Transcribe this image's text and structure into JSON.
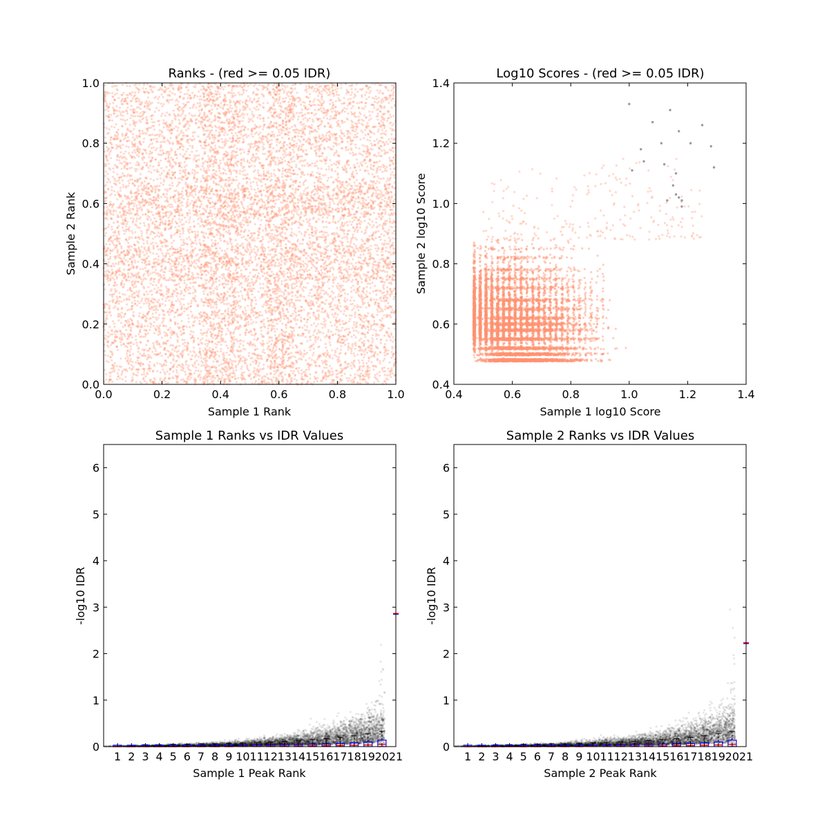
{
  "colors": {
    "pass_point": "#ff9270",
    "fail_point": "#808080",
    "idr_point": "#000000",
    "box": "#0000ff",
    "median": "#ff0000",
    "whisker": "#000000"
  },
  "chart_data": [
    {
      "type": "scatter",
      "title": "Ranks - (red >= 0.05 IDR)",
      "xlabel": "Sample 1 Rank",
      "ylabel": "Sample 2 Rank",
      "xlim": [
        0.0,
        1.0
      ],
      "ylim": [
        0.0,
        1.0
      ],
      "xticks": [
        "0.0",
        "0.2",
        "0.4",
        "0.6",
        "0.8",
        "1.0"
      ],
      "yticks": [
        "0.0",
        "0.2",
        "0.4",
        "0.6",
        "0.8",
        "1.0"
      ],
      "series": [
        {
          "color": "#ff9270",
          "description": "dense uniform cloud of ranks over [0,1]x[0,1]",
          "n_points_approx": 20000
        }
      ]
    },
    {
      "type": "scatter",
      "title": "Log10 Scores - (red >= 0.05 IDR)",
      "xlabel": "Sample 1 log10 Score",
      "ylabel": "Sample 2 log10 Score",
      "xlim": [
        0.4,
        1.4
      ],
      "ylim": [
        0.4,
        1.4
      ],
      "xticks": [
        "0.4",
        "0.6",
        "0.8",
        "1.0",
        "1.2",
        "1.4"
      ],
      "yticks": [
        "0.4",
        "0.6",
        "0.8",
        "1.0",
        "1.2",
        "1.4"
      ],
      "series": [
        {
          "color": "#ff9270",
          "description": "scores concentrated in [0.47,1.0]x[0.47,0.9], dense core near (0.6,0.6)"
        },
        {
          "color": "#808080",
          "points": [
            [
              1.0,
              1.33
            ],
            [
              1.14,
              1.31
            ],
            [
              1.25,
              1.26
            ],
            [
              1.08,
              1.27
            ],
            [
              1.17,
              1.24
            ],
            [
              1.11,
              1.2
            ],
            [
              1.21,
              1.2
            ],
            [
              1.28,
              1.19
            ],
            [
              1.04,
              1.18
            ],
            [
              1.05,
              1.14
            ],
            [
              1.12,
              1.13
            ],
            [
              1.29,
              1.12
            ],
            [
              1.01,
              1.11
            ],
            [
              1.16,
              1.1
            ],
            [
              1.15,
              1.06
            ],
            [
              1.16,
              1.03
            ],
            [
              1.17,
              1.02
            ],
            [
              1.18,
              1.01
            ],
            [
              1.18,
              0.99
            ],
            [
              1.13,
              1.01
            ]
          ]
        }
      ]
    },
    {
      "type": "boxplot",
      "title": "Sample 1 Ranks vs IDR Values",
      "xlabel": "Sample 1 Peak Rank",
      "ylabel": "-log10 IDR",
      "xlim": [
        0,
        21
      ],
      "ylim": [
        0,
        6.5
      ],
      "categories": [
        "1",
        "2",
        "3",
        "4",
        "5",
        "6",
        "7",
        "8",
        "9",
        "10",
        "11",
        "12",
        "13",
        "14",
        "15",
        "16",
        "17",
        "18",
        "19",
        "20",
        "21"
      ],
      "yticks": [
        "0",
        "1",
        "2",
        "3",
        "4",
        "5",
        "6"
      ],
      "box_medians": [
        0.0,
        0.0,
        0.0,
        0.0,
        0.0,
        0.0,
        0.0,
        0.0,
        0.0,
        0.005,
        0.005,
        0.008,
        0.01,
        0.012,
        0.015,
        0.018,
        0.022,
        0.028,
        0.035,
        0.05,
        2.86
      ],
      "box_q3": [
        0.005,
        0.005,
        0.008,
        0.01,
        0.012,
        0.015,
        0.018,
        0.02,
        0.025,
        0.03,
        0.035,
        0.04,
        0.045,
        0.05,
        0.055,
        0.06,
        0.07,
        0.08,
        0.1,
        0.14,
        2.87
      ],
      "whisker_max": [
        0.03,
        0.03,
        0.04,
        0.04,
        0.05,
        0.05,
        0.06,
        0.06,
        0.07,
        0.08,
        0.09,
        0.1,
        0.11,
        0.13,
        0.15,
        0.17,
        0.2,
        0.23,
        0.28,
        0.33,
        2.86
      ],
      "point_max": [
        0.04,
        0.04,
        0.05,
        0.05,
        0.06,
        0.07,
        0.08,
        0.08,
        0.1,
        0.11,
        0.13,
        0.14,
        0.16,
        0.19,
        0.22,
        0.27,
        0.34,
        0.5,
        0.9,
        3.0,
        2.86
      ]
    },
    {
      "type": "boxplot",
      "title": "Sample 2 Ranks vs IDR Values",
      "xlabel": "Sample 2 Peak Rank",
      "ylabel": "-log10 IDR",
      "xlim": [
        0,
        21
      ],
      "ylim": [
        0,
        6.5
      ],
      "categories": [
        "1",
        "2",
        "3",
        "4",
        "5",
        "6",
        "7",
        "8",
        "9",
        "10",
        "11",
        "12",
        "13",
        "14",
        "15",
        "16",
        "17",
        "18",
        "19",
        "20",
        "21"
      ],
      "yticks": [
        "0",
        "1",
        "2",
        "3",
        "4",
        "5",
        "6"
      ],
      "box_medians": [
        0.0,
        0.0,
        0.0,
        0.0,
        0.0,
        0.0,
        0.0,
        0.0,
        0.0,
        0.005,
        0.005,
        0.008,
        0.01,
        0.012,
        0.015,
        0.018,
        0.022,
        0.028,
        0.035,
        0.05,
        2.23
      ],
      "box_q3": [
        0.005,
        0.005,
        0.008,
        0.01,
        0.012,
        0.015,
        0.018,
        0.02,
        0.025,
        0.03,
        0.035,
        0.04,
        0.045,
        0.05,
        0.055,
        0.06,
        0.07,
        0.08,
        0.1,
        0.14,
        2.24
      ],
      "whisker_max": [
        0.03,
        0.03,
        0.04,
        0.04,
        0.05,
        0.05,
        0.06,
        0.06,
        0.07,
        0.08,
        0.09,
        0.1,
        0.11,
        0.13,
        0.15,
        0.17,
        0.2,
        0.23,
        0.28,
        0.33,
        2.23
      ],
      "point_max": [
        0.04,
        0.04,
        0.05,
        0.05,
        0.06,
        0.07,
        0.08,
        0.08,
        0.1,
        0.11,
        0.13,
        0.14,
        0.16,
        0.19,
        0.22,
        0.27,
        0.34,
        0.5,
        0.9,
        3.0,
        2.23
      ]
    }
  ]
}
